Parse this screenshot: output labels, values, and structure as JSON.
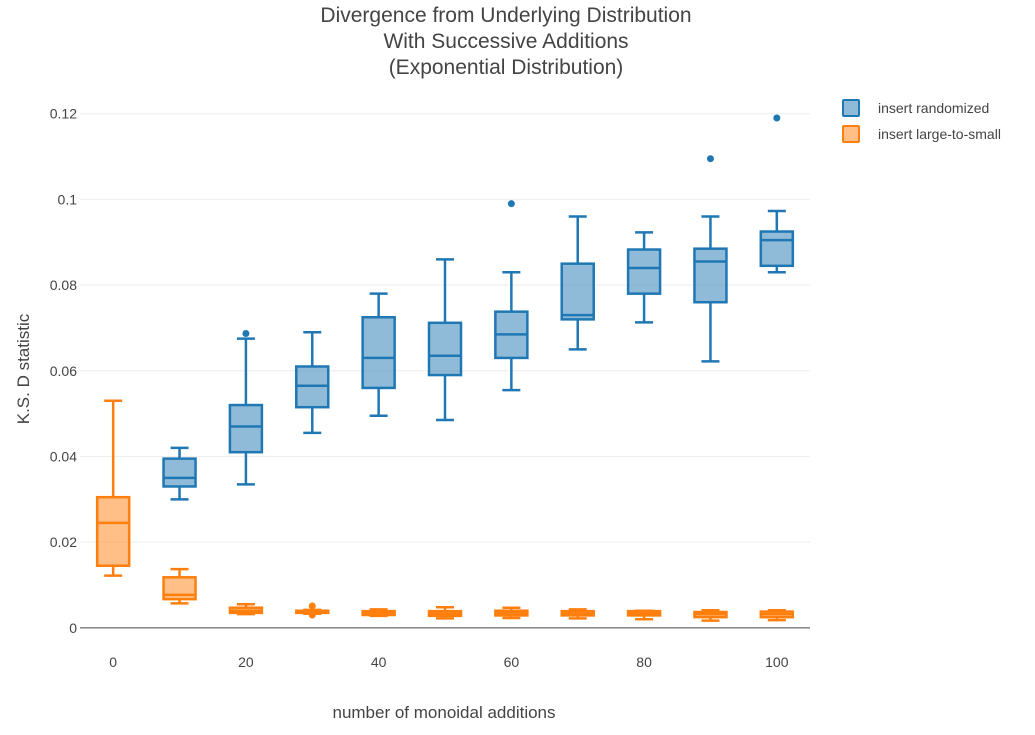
{
  "chart_data": {
    "type": "box",
    "title_lines": [
      "Divergence from Underlying Distribution",
      "With Successive Additions",
      "(Exponential Distribution)"
    ],
    "xlabel": "number of monoidal additions",
    "ylabel": "K.S. D statistic",
    "xlim": [
      -5,
      105
    ],
    "ylim": [
      -0.0012,
      0.1232
    ],
    "x_ticks": [
      0,
      20,
      40,
      60,
      80,
      100
    ],
    "y_ticks": [
      0,
      0.02,
      0.04,
      0.06,
      0.08,
      0.1,
      0.12
    ],
    "x_tick_labels": [
      "0",
      "20",
      "40",
      "60",
      "80",
      "100"
    ],
    "y_tick_labels": [
      "0",
      "0.02",
      "0.04",
      "0.06",
      "0.08",
      "0.1",
      "0.12"
    ],
    "grid": true,
    "legend_position": "top-right",
    "series": [
      {
        "name": "insert randomized",
        "color": "#1f77b4",
        "boxes": [
          {
            "x": 10,
            "min": 0.03,
            "q1": 0.033,
            "median": 0.035,
            "q3": 0.0395,
            "max": 0.042,
            "outliers": []
          },
          {
            "x": 20,
            "min": 0.0335,
            "q1": 0.041,
            "median": 0.047,
            "q3": 0.052,
            "max": 0.0675,
            "outliers": [
              0.0687
            ]
          },
          {
            "x": 30,
            "min": 0.0455,
            "q1": 0.0515,
            "median": 0.0565,
            "q3": 0.061,
            "max": 0.069,
            "outliers": []
          },
          {
            "x": 40,
            "min": 0.0495,
            "q1": 0.056,
            "median": 0.063,
            "q3": 0.0725,
            "max": 0.078,
            "outliers": []
          },
          {
            "x": 50,
            "min": 0.0485,
            "q1": 0.059,
            "median": 0.0635,
            "q3": 0.0712,
            "max": 0.086,
            "outliers": []
          },
          {
            "x": 60,
            "min": 0.0555,
            "q1": 0.063,
            "median": 0.0685,
            "q3": 0.0738,
            "max": 0.083,
            "outliers": [
              0.099
            ]
          },
          {
            "x": 70,
            "min": 0.065,
            "q1": 0.072,
            "median": 0.073,
            "q3": 0.085,
            "max": 0.096,
            "outliers": []
          },
          {
            "x": 80,
            "min": 0.0713,
            "q1": 0.078,
            "median": 0.084,
            "q3": 0.0883,
            "max": 0.0923,
            "outliers": []
          },
          {
            "x": 90,
            "min": 0.0622,
            "q1": 0.076,
            "median": 0.0855,
            "q3": 0.0885,
            "max": 0.096,
            "outliers": [
              0.1095
            ]
          },
          {
            "x": 100,
            "min": 0.083,
            "q1": 0.0845,
            "median": 0.0905,
            "q3": 0.0925,
            "max": 0.0973,
            "outliers": [
              0.119
            ]
          }
        ]
      },
      {
        "name": "insert large-to-small",
        "color": "#ff7f0e",
        "boxes": [
          {
            "x": 0,
            "min": 0.0122,
            "q1": 0.0145,
            "median": 0.0245,
            "q3": 0.0305,
            "max": 0.053,
            "outliers": []
          },
          {
            "x": 10,
            "min": 0.0057,
            "q1": 0.0067,
            "median": 0.0077,
            "q3": 0.0118,
            "max": 0.0137,
            "outliers": []
          },
          {
            "x": 20,
            "min": 0.0032,
            "q1": 0.0035,
            "median": 0.004,
            "q3": 0.0047,
            "max": 0.0055,
            "outliers": []
          },
          {
            "x": 30,
            "min": 0.0033,
            "q1": 0.0035,
            "median": 0.0037,
            "q3": 0.004,
            "max": 0.0042,
            "outliers": [
              0.0051,
              0.003
            ]
          },
          {
            "x": 40,
            "min": 0.0028,
            "q1": 0.003,
            "median": 0.0034,
            "q3": 0.0039,
            "max": 0.0043,
            "outliers": []
          },
          {
            "x": 50,
            "min": 0.0022,
            "q1": 0.0028,
            "median": 0.0033,
            "q3": 0.0039,
            "max": 0.0048,
            "outliers": []
          },
          {
            "x": 60,
            "min": 0.0023,
            "q1": 0.0029,
            "median": 0.0034,
            "q3": 0.004,
            "max": 0.0047,
            "outliers": []
          },
          {
            "x": 70,
            "min": 0.0022,
            "q1": 0.0029,
            "median": 0.0033,
            "q3": 0.0039,
            "max": 0.0043,
            "outliers": []
          },
          {
            "x": 80,
            "min": 0.002,
            "q1": 0.0029,
            "median": 0.0034,
            "q3": 0.0039,
            "max": 0.004,
            "outliers": []
          },
          {
            "x": 90,
            "min": 0.0017,
            "q1": 0.0025,
            "median": 0.0032,
            "q3": 0.0037,
            "max": 0.0041,
            "outliers": []
          },
          {
            "x": 100,
            "min": 0.0018,
            "q1": 0.0025,
            "median": 0.0032,
            "q3": 0.0038,
            "max": 0.0041,
            "outliers": []
          }
        ]
      }
    ]
  }
}
